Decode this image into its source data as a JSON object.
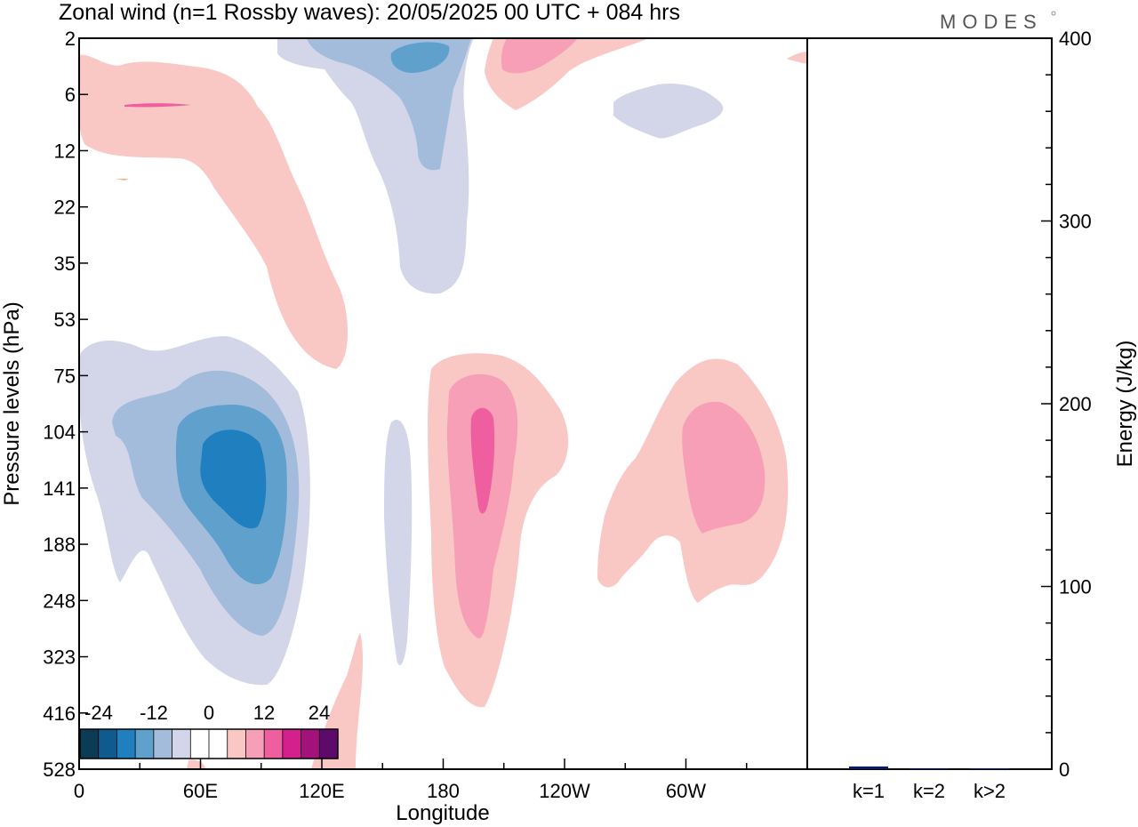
{
  "header": {
    "title": "Zonal wind (n=1 Rossby waves):  20/05/2025  00 UTC  + 084 hrs",
    "brand": "MODES"
  },
  "chart_data": [
    {
      "type": "heatmap",
      "description_kind": "filled contour (longitude-pressure cross section)",
      "xlabel": "Longitude",
      "ylabel": "Pressure levels (hPa)",
      "x_ticks": [
        "0",
        "60E",
        "120E",
        "180",
        "120W",
        "60W"
      ],
      "x_tick_degrees": [
        0,
        60,
        120,
        180,
        240,
        300
      ],
      "xlim": [
        0,
        360
      ],
      "y_ticks": [
        "2",
        "6",
        "12",
        "22",
        "35",
        "53",
        "75",
        "104",
        "141",
        "188",
        "248",
        "323",
        "416",
        "528"
      ],
      "y_axis": "model levels, top = 2 hPa, bottom = 528 hPa",
      "colorbar": {
        "tick_labels": [
          "-24",
          "-12",
          "0",
          "12",
          "24"
        ],
        "colors": [
          "#0c3b55",
          "#0f5b8f",
          "#1f7fbf",
          "#5fa0cd",
          "#a3bcdc",
          "#d3d6e8",
          "#ffffff",
          "#ffffff",
          "#f9c8c5",
          "#f79fb6",
          "#ef5fa0",
          "#d3208c",
          "#a3127a",
          "#5e0a6a"
        ]
      },
      "levels": {
        "neg_light": "#d3d6e8",
        "neg_mid": "#a3bcdc",
        "neg_strong": "#5fa0cd",
        "neg_core": "#1f7fbf",
        "pos_light": "#f9c8c5",
        "pos_mid": "#f79fb6",
        "pos_strong": "#ef5fa0"
      }
    },
    {
      "type": "bar",
      "categories": [
        "k=1",
        "k=2",
        "k>2"
      ],
      "values": [
        1.5,
        0.2,
        0.4
      ],
      "ylabel": "Energy (J/kg)",
      "y_ticks": [
        "0",
        "100",
        "200",
        "300",
        "400"
      ],
      "ylim": [
        0,
        400
      ],
      "bar_color": "#0a1a6b"
    }
  ]
}
